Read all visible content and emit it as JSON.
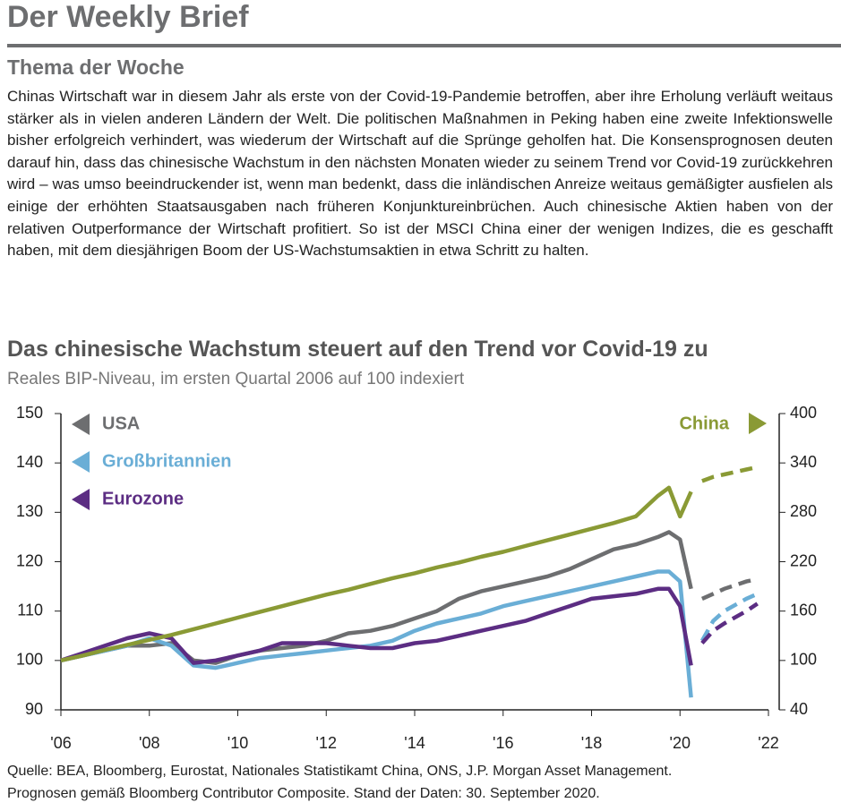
{
  "header": {
    "title": "Der Weekly Brief"
  },
  "section": {
    "title": "Thema der Woche",
    "paragraph": "Chinas Wirtschaft war in diesem Jahr als erste von der Covid-19-Pandemie betroffen, aber ihre Erholung verläuft weitaus stärker als in vielen anderen Ländern der Welt. Die politischen Maßnahmen in Peking haben eine zweite Infektionswelle bisher erfolgreich verhindert, was wiederum der Wirtschaft auf die Sprünge geholfen hat. Die Konsensprognosen deuten darauf hin, dass das chinesische Wachstum in den nächsten Monaten wieder zu seinem Trend vor Covid-19 zurückkehren wird – was umso beeindruckender ist, wenn man bedenkt, dass die inländischen Anreize weitaus gemäßigter ausfielen als einige der erhöhten Staatsausgaben nach früheren Konjunktureinbrüchen. Auch chinesische Aktien haben von der relativen Outperformance der Wirtschaft profitiert. So ist der MSCI China einer der wenigen Indizes, die es geschafft haben, mit dem diesjährigen Boom der US-Wachstumsaktien in etwa Schritt zu halten."
  },
  "chart_data": {
    "type": "line",
    "title": "Das chinesische Wachstum steuert auf den Trend vor Covid-19 zu",
    "subtitle": "Reales BIP-Niveau, im ersten Quartal 2006 auf 100 indexiert",
    "x": [
      2006,
      2006.5,
      2007,
      2007.5,
      2008,
      2008.5,
      2009,
      2009.5,
      2010,
      2010.5,
      2011,
      2011.5,
      2012,
      2012.5,
      2013,
      2013.5,
      2014,
      2014.5,
      2015,
      2015.5,
      2016,
      2016.5,
      2017,
      2017.5,
      2018,
      2018.5,
      2019,
      2019.5,
      2019.75,
      2020,
      2020.25,
      2020.5,
      2020.75,
      2021,
      2021.5,
      2021.75
    ],
    "xlim": [
      2006,
      2022
    ],
    "xticks": [
      {
        "value": 2006,
        "label": "'06"
      },
      {
        "value": 2008,
        "label": "'08"
      },
      {
        "value": 2010,
        "label": "'10"
      },
      {
        "value": 2012,
        "label": "'12"
      },
      {
        "value": 2014,
        "label": "'14"
      },
      {
        "value": 2016,
        "label": "'16"
      },
      {
        "value": 2018,
        "label": "'18"
      },
      {
        "value": 2020,
        "label": "'20"
      },
      {
        "value": 2022,
        "label": "'22"
      }
    ],
    "ylim": [
      90,
      150
    ],
    "yticks": [
      90,
      100,
      110,
      120,
      130,
      140,
      150
    ],
    "y2lim": [
      40,
      400
    ],
    "y2ticks": [
      40,
      100,
      160,
      220,
      280,
      340,
      400
    ],
    "series": [
      {
        "name": "USA",
        "color": "#6d6e70",
        "values": [
          100,
          101,
          102,
          103,
          103,
          103.5,
          100,
          99.5,
          101,
          102,
          102.5,
          103,
          104,
          105.5,
          106,
          107,
          108.5,
          110,
          112.5,
          114,
          115,
          116,
          117,
          118.5,
          120.5,
          122.5,
          123.5,
          125,
          126,
          124.5,
          114.5,
          null,
          null,
          null,
          null,
          null
        ],
        "forecast": [
          null,
          null,
          null,
          null,
          null,
          null,
          null,
          null,
          null,
          null,
          null,
          null,
          null,
          null,
          null,
          null,
          null,
          null,
          null,
          null,
          null,
          null,
          null,
          null,
          null,
          null,
          null,
          null,
          null,
          null,
          null,
          112.5,
          113.5,
          114.5,
          116,
          116.5
        ]
      },
      {
        "name": "Großbritannien",
        "color": "#6aaed6",
        "values": [
          100,
          101,
          102,
          103,
          104.5,
          103,
          99,
          98.5,
          99.5,
          100.5,
          101,
          101.5,
          102,
          102.5,
          103,
          104,
          106,
          107.5,
          108.5,
          109.5,
          111,
          112,
          113,
          114,
          115,
          116,
          117,
          118,
          118,
          116,
          92.5,
          null,
          null,
          null,
          null,
          null
        ],
        "forecast": [
          null,
          null,
          null,
          null,
          null,
          null,
          null,
          null,
          null,
          null,
          null,
          null,
          null,
          null,
          null,
          null,
          null,
          null,
          null,
          null,
          null,
          null,
          null,
          null,
          null,
          null,
          null,
          null,
          null,
          null,
          null,
          104,
          108,
          110,
          112.5,
          113.5
        ]
      },
      {
        "name": "Eurozone",
        "color": "#5c2d83",
        "values": [
          100,
          101.5,
          103,
          104.5,
          105.5,
          104.5,
          99.5,
          100,
          101,
          102,
          103.5,
          103.5,
          103.5,
          103,
          102.5,
          102.5,
          103.5,
          104,
          105,
          106,
          107,
          108,
          109.5,
          111,
          112.5,
          113,
          113.5,
          114.5,
          114.5,
          111,
          99,
          null,
          null,
          null,
          null,
          null
        ],
        "forecast": [
          null,
          null,
          null,
          null,
          null,
          null,
          null,
          null,
          null,
          null,
          null,
          null,
          null,
          null,
          null,
          null,
          null,
          null,
          null,
          null,
          null,
          null,
          null,
          null,
          null,
          null,
          null,
          null,
          null,
          null,
          null,
          103.5,
          106,
          107.5,
          110,
          111.5
        ]
      },
      {
        "name": "China",
        "color": "#8a9a35",
        "axis": "y2",
        "values": [
          100,
          106,
          113,
          119,
          125,
          131,
          138,
          145,
          152,
          159,
          166,
          173,
          180,
          186,
          193,
          200,
          206,
          213,
          219,
          226,
          232,
          239,
          246,
          253,
          260,
          267,
          275,
          300,
          310,
          275,
          305,
          null,
          null,
          null,
          null,
          null
        ],
        "forecast": [
          null,
          null,
          null,
          null,
          null,
          null,
          null,
          null,
          null,
          null,
          null,
          null,
          null,
          null,
          null,
          null,
          null,
          null,
          null,
          null,
          null,
          null,
          null,
          null,
          null,
          null,
          null,
          null,
          null,
          null,
          null,
          318,
          323,
          326,
          332,
          335
        ]
      }
    ]
  },
  "footnotes": [
    "Quelle: BEA, Bloomberg, Eurostat, Nationales Statistikamt China, ONS, J.P. Morgan Asset Management.",
    "Prognosen gemäß Bloomberg Contributor Composite. Stand der Daten: 30. September 2020."
  ]
}
